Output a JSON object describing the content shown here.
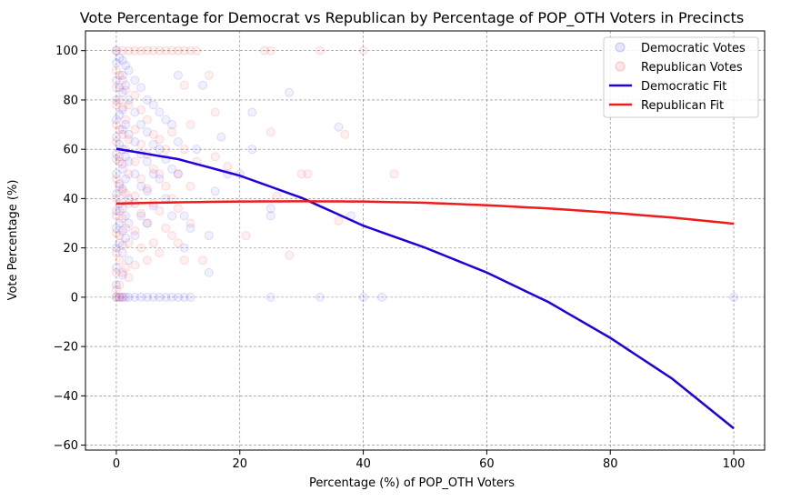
{
  "chart_data": {
    "type": "scatter",
    "title": "Vote Percentage for Democrat vs Republican by Percentage of POP_OTH Voters in Precincts",
    "xlabel": "Percentage (%) of POP_OTH Voters",
    "ylabel": "Vote Percentage (%)",
    "xlim": [
      -5,
      105
    ],
    "ylim": [
      -62,
      108
    ],
    "xticks": [
      0,
      20,
      40,
      60,
      80,
      100
    ],
    "yticks": [
      -60,
      -40,
      -20,
      0,
      20,
      40,
      60,
      80,
      100
    ],
    "grid": true,
    "legend_position": "top-right",
    "series": [
      {
        "name": "Democratic Votes",
        "kind": "scatter",
        "color": "#0000ff",
        "alpha": 0.06,
        "points": [
          [
            0,
            100
          ],
          [
            0,
            95
          ],
          [
            0,
            88
          ],
          [
            0,
            80
          ],
          [
            0,
            72
          ],
          [
            0,
            65
          ],
          [
            0,
            58
          ],
          [
            0,
            50
          ],
          [
            0,
            42
          ],
          [
            0,
            35
          ],
          [
            0,
            28
          ],
          [
            0,
            20
          ],
          [
            0,
            12
          ],
          [
            0,
            5
          ],
          [
            0,
            0
          ],
          [
            0.5,
            97
          ],
          [
            0.5,
            85
          ],
          [
            0.5,
            74
          ],
          [
            0.5,
            62
          ],
          [
            0.5,
            55
          ],
          [
            0.5,
            46
          ],
          [
            0.5,
            38
          ],
          [
            0.5,
            30
          ],
          [
            0.5,
            22
          ],
          [
            0.5,
            0
          ],
          [
            1,
            96
          ],
          [
            1,
            90
          ],
          [
            1,
            83
          ],
          [
            1,
            76
          ],
          [
            1,
            68
          ],
          [
            1,
            60
          ],
          [
            1,
            52
          ],
          [
            1,
            44
          ],
          [
            1,
            36
          ],
          [
            1,
            27
          ],
          [
            1,
            18
          ],
          [
            1,
            9
          ],
          [
            1,
            0
          ],
          [
            1.5,
            94
          ],
          [
            1.5,
            86
          ],
          [
            1.5,
            70
          ],
          [
            1.5,
            57
          ],
          [
            1.5,
            48
          ],
          [
            1.5,
            33
          ],
          [
            1.5,
            24
          ],
          [
            1.5,
            0
          ],
          [
            2,
            92
          ],
          [
            2,
            80
          ],
          [
            2,
            66
          ],
          [
            2,
            55
          ],
          [
            2,
            40
          ],
          [
            2,
            30
          ],
          [
            2,
            15
          ],
          [
            2,
            0
          ],
          [
            3,
            88
          ],
          [
            3,
            75
          ],
          [
            3,
            63
          ],
          [
            3,
            50
          ],
          [
            3,
            38
          ],
          [
            3,
            25
          ],
          [
            3,
            0
          ],
          [
            4,
            85
          ],
          [
            4,
            70
          ],
          [
            4,
            58
          ],
          [
            4,
            45
          ],
          [
            4,
            33
          ],
          [
            4,
            0
          ],
          [
            5,
            80
          ],
          [
            5,
            67
          ],
          [
            5,
            55
          ],
          [
            5,
            43
          ],
          [
            5,
            30
          ],
          [
            5,
            0
          ],
          [
            6,
            78
          ],
          [
            6,
            62
          ],
          [
            6,
            50
          ],
          [
            6,
            37
          ],
          [
            6,
            0
          ],
          [
            7,
            75
          ],
          [
            7,
            60
          ],
          [
            7,
            48
          ],
          [
            7,
            0
          ],
          [
            8,
            72
          ],
          [
            8,
            56
          ],
          [
            8,
            40
          ],
          [
            8,
            0
          ],
          [
            9,
            70
          ],
          [
            9,
            52
          ],
          [
            9,
            33
          ],
          [
            9,
            0
          ],
          [
            10,
            90
          ],
          [
            10,
            63
          ],
          [
            10,
            50
          ],
          [
            10,
            0
          ],
          [
            11,
            33
          ],
          [
            11,
            20
          ],
          [
            11,
            0
          ],
          [
            12,
            28
          ],
          [
            12,
            0
          ],
          [
            13,
            60
          ],
          [
            14,
            86
          ],
          [
            15,
            10
          ],
          [
            15,
            25
          ],
          [
            16,
            43
          ],
          [
            17,
            65
          ],
          [
            18,
            50
          ],
          [
            20,
            50
          ],
          [
            22,
            75
          ],
          [
            22,
            60
          ],
          [
            25,
            33
          ],
          [
            25,
            36
          ],
          [
            25,
            0
          ],
          [
            28,
            83
          ],
          [
            33,
            0
          ],
          [
            36,
            69
          ],
          [
            38,
            33
          ],
          [
            40,
            0
          ],
          [
            43,
            0
          ],
          [
            100,
            0
          ]
        ]
      },
      {
        "name": "Republican Votes",
        "kind": "scatter",
        "color": "#ff0000",
        "alpha": 0.06,
        "points": [
          [
            0,
            100
          ],
          [
            0,
            92
          ],
          [
            0,
            85
          ],
          [
            0,
            78
          ],
          [
            0,
            70
          ],
          [
            0,
            63
          ],
          [
            0,
            56
          ],
          [
            0,
            48
          ],
          [
            0,
            40
          ],
          [
            0,
            33
          ],
          [
            0,
            26
          ],
          [
            0,
            18
          ],
          [
            0,
            10
          ],
          [
            0,
            3
          ],
          [
            0,
            0
          ],
          [
            0.5,
            90
          ],
          [
            0.5,
            80
          ],
          [
            0.5,
            68
          ],
          [
            0.5,
            57
          ],
          [
            0.5,
            45
          ],
          [
            0.5,
            35
          ],
          [
            0.5,
            25
          ],
          [
            0.5,
            15
          ],
          [
            0.5,
            5
          ],
          [
            0.5,
            0
          ],
          [
            1,
            100
          ],
          [
            1,
            88
          ],
          [
            1,
            77
          ],
          [
            1,
            66
          ],
          [
            1,
            54
          ],
          [
            1,
            43
          ],
          [
            1,
            32
          ],
          [
            1,
            21
          ],
          [
            1,
            10
          ],
          [
            1,
            0
          ],
          [
            1.5,
            84
          ],
          [
            1.5,
            72
          ],
          [
            1.5,
            60
          ],
          [
            1.5,
            42
          ],
          [
            1.5,
            28
          ],
          [
            1.5,
            12
          ],
          [
            2,
            100
          ],
          [
            2,
            78
          ],
          [
            2,
            64
          ],
          [
            2,
            50
          ],
          [
            2,
            38
          ],
          [
            2,
            22
          ],
          [
            2,
            8
          ],
          [
            3,
            100
          ],
          [
            3,
            82
          ],
          [
            3,
            68
          ],
          [
            3,
            55
          ],
          [
            3,
            41
          ],
          [
            3,
            27
          ],
          [
            3,
            13
          ],
          [
            4,
            100
          ],
          [
            4,
            76
          ],
          [
            4,
            62
          ],
          [
            4,
            48
          ],
          [
            4,
            34
          ],
          [
            4,
            20
          ],
          [
            5,
            100
          ],
          [
            5,
            72
          ],
          [
            5,
            58
          ],
          [
            5,
            44
          ],
          [
            5,
            30
          ],
          [
            5,
            15
          ],
          [
            6,
            100
          ],
          [
            6,
            66
          ],
          [
            6,
            52
          ],
          [
            6,
            38
          ],
          [
            6,
            22
          ],
          [
            7,
            100
          ],
          [
            7,
            64
          ],
          [
            7,
            50
          ],
          [
            7,
            35
          ],
          [
            7,
            18
          ],
          [
            8,
            100
          ],
          [
            8,
            60
          ],
          [
            8,
            45
          ],
          [
            8,
            28
          ],
          [
            9,
            100
          ],
          [
            9,
            67
          ],
          [
            9,
            40
          ],
          [
            9,
            25
          ],
          [
            10,
            100
          ],
          [
            10,
            50
          ],
          [
            10,
            36
          ],
          [
            10,
            22
          ],
          [
            11,
            100
          ],
          [
            11,
            86
          ],
          [
            11,
            60
          ],
          [
            11,
            15
          ],
          [
            12,
            100
          ],
          [
            12,
            70
          ],
          [
            12,
            45
          ],
          [
            12,
            30
          ],
          [
            13,
            100
          ],
          [
            13,
            55
          ],
          [
            14,
            15
          ],
          [
            15,
            90
          ],
          [
            16,
            75
          ],
          [
            16,
            57
          ],
          [
            18,
            53
          ],
          [
            21,
            25
          ],
          [
            24,
            100
          ],
          [
            25,
            67
          ],
          [
            25,
            100
          ],
          [
            26,
            41
          ],
          [
            28,
            17
          ],
          [
            30,
            50
          ],
          [
            31,
            50
          ],
          [
            33,
            100
          ],
          [
            36,
            31
          ],
          [
            37,
            66
          ],
          [
            40,
            100
          ],
          [
            45,
            50
          ]
        ]
      },
      {
        "name": "Democratic Fit",
        "kind": "line",
        "color": "#2200dd",
        "x": [
          0,
          10,
          20,
          30,
          40,
          50,
          60,
          70,
          80,
          90,
          100
        ],
        "y": [
          60.2,
          56.0,
          49.3,
          40.3,
          29.0,
          20.1,
          10.0,
          -2.0,
          -16.5,
          -33.0,
          -53.2
        ]
      },
      {
        "name": "Republican Fit",
        "kind": "line",
        "color": "#ee1c1c",
        "x": [
          0,
          10,
          20,
          30,
          40,
          50,
          60,
          70,
          80,
          90,
          100
        ],
        "y": [
          38.0,
          38.5,
          38.8,
          38.9,
          38.8,
          38.3,
          37.3,
          36.0,
          34.3,
          32.3,
          29.8
        ]
      }
    ]
  }
}
